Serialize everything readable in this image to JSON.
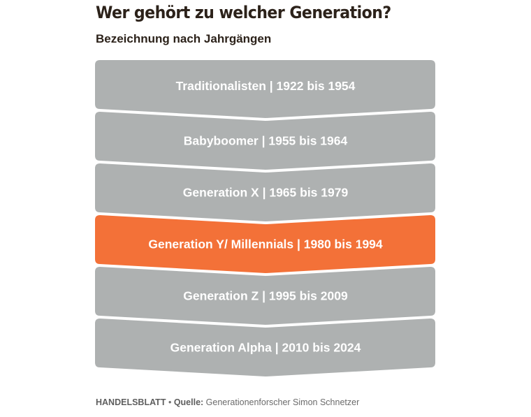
{
  "title": "Wer gehört zu welcher Generation?",
  "subtitle": "Bezeichnung nach Jahrgängen",
  "colors": {
    "default_band": "#aeb1b1",
    "highlight_band": "#f37138",
    "label": "#ffffff"
  },
  "generations": [
    {
      "label": "Traditionalisten | 1922 bis 1954",
      "highlighted": false
    },
    {
      "label": "Babyboomer | 1955 bis 1964",
      "highlighted": false
    },
    {
      "label": "Generation X | 1965 bis 1979",
      "highlighted": false
    },
    {
      "label": "Generation Y/ Millennials | 1980 bis 1994",
      "highlighted": true
    },
    {
      "label": "Generation Z | 1995 bis 2009",
      "highlighted": false
    },
    {
      "label": "Generation Alpha | 2010 bis 2024",
      "highlighted": false
    }
  ],
  "footer": {
    "brand": "HANDELSBLATT",
    "separator": "•",
    "source_label": "Quelle:",
    "source_text": "Generationenforscher Simon Schnetzer"
  }
}
